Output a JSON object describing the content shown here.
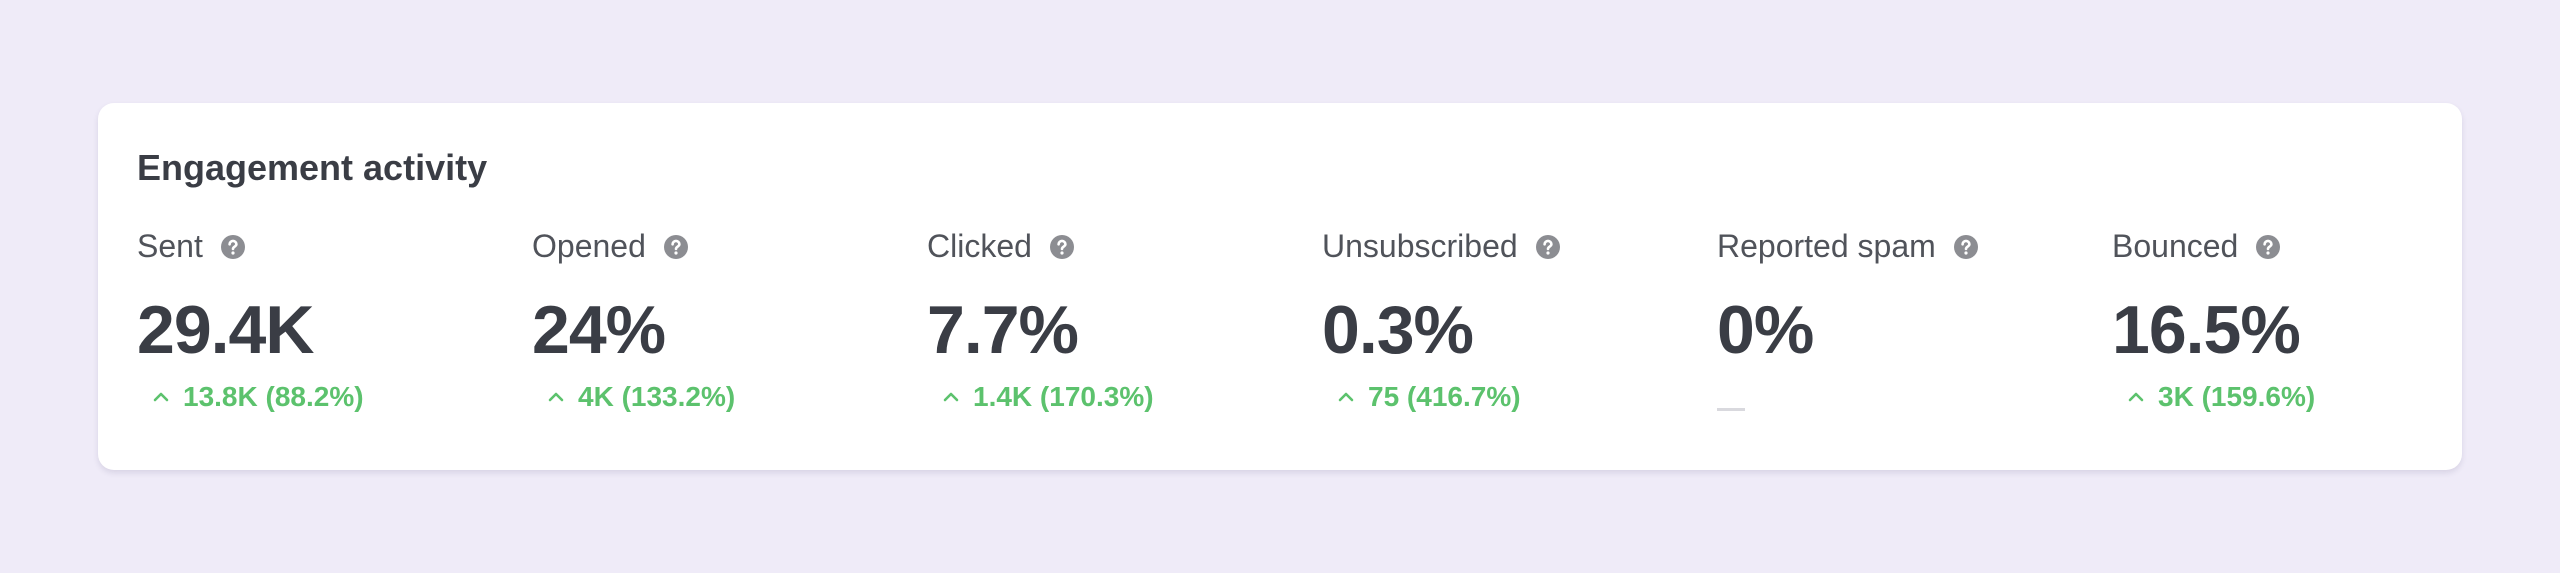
{
  "header": {
    "title": "Engagement activity"
  },
  "metrics": [
    {
      "label": "Sent",
      "value": "29.4K",
      "change": "13.8K (88.2%)"
    },
    {
      "label": "Opened",
      "value": "24%",
      "change": "4K (133.2%)"
    },
    {
      "label": "Clicked",
      "value": "7.7%",
      "change": "1.4K (170.3%)"
    },
    {
      "label": "Unsubscribed",
      "value": "0.3%",
      "change": "75 (416.7%)"
    },
    {
      "label": "Reported spam",
      "value": "0%"
    },
    {
      "label": "Bounced",
      "value": "16.5%",
      "change": "3K (159.6%)"
    }
  ]
}
